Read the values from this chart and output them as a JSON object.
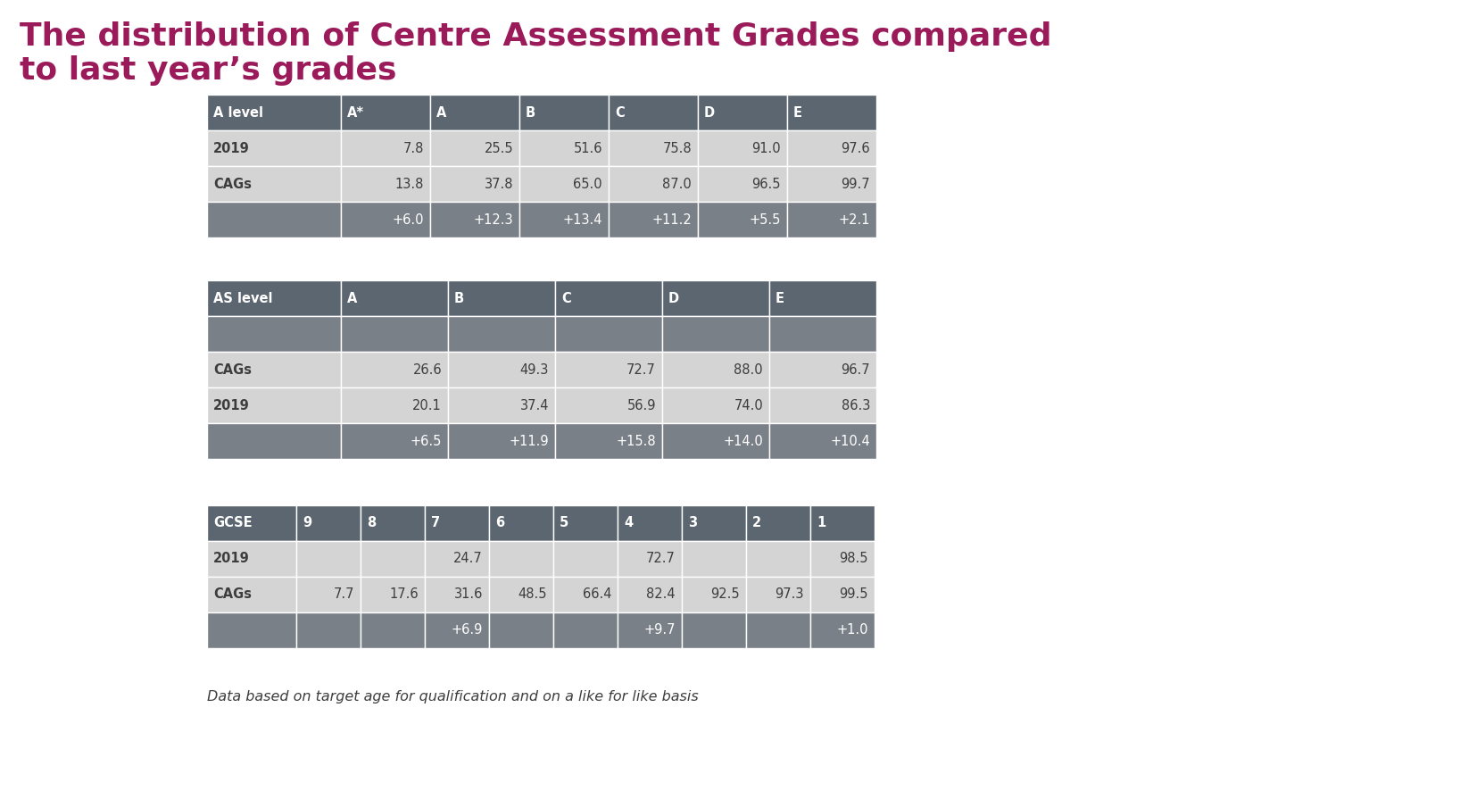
{
  "title_line1": "The distribution of Centre Assessment Grades compared",
  "title_line2": "to last year’s grades",
  "title_color": "#9B1B5A",
  "background_color": "#FFFFFF",
  "footnote": "Data based on target age for qualification and on a like for like basis",
  "a_level": {
    "header_label": "A level",
    "grade_cols": [
      "A*",
      "A",
      "B",
      "C",
      "D",
      "E"
    ],
    "rows": [
      {
        "label": "2019",
        "values": [
          "7.8",
          "25.5",
          "51.6",
          "75.8",
          "91.0",
          "97.6"
        ],
        "label_bold": true
      },
      {
        "label": "CAGs",
        "values": [
          "13.8",
          "37.8",
          "65.0",
          "87.0",
          "96.5",
          "99.7"
        ],
        "label_bold": true
      },
      {
        "label": "",
        "values": [
          "+6.0",
          "+12.3",
          "+13.4",
          "+11.2",
          "+5.5",
          "+2.1"
        ],
        "label_bold": false
      }
    ],
    "header_bg": "#5C6670",
    "row_bgs": [
      "#D4D4D4",
      "#D4D4D4",
      "#7A8088"
    ],
    "header_text": "#FFFFFF",
    "row_texts": [
      "#3D3D3D",
      "#3D3D3D",
      "#FFFFFF"
    ]
  },
  "as_level": {
    "header_label": "AS level",
    "grade_cols": [
      "A",
      "B",
      "C",
      "D",
      "E"
    ],
    "rows": [
      {
        "label": "",
        "values": [
          "",
          "",
          "",
          "",
          ""
        ],
        "label_bold": false
      },
      {
        "label": "CAGs",
        "values": [
          "26.6",
          "49.3",
          "72.7",
          "88.0",
          "96.7"
        ],
        "label_bold": true
      },
      {
        "label": "2019",
        "values": [
          "20.1",
          "37.4",
          "56.9",
          "74.0",
          "86.3"
        ],
        "label_bold": true
      },
      {
        "label": "",
        "values": [
          "+6.5",
          "+11.9",
          "+15.8",
          "+14.0",
          "+10.4"
        ],
        "label_bold": false
      }
    ],
    "header_bg": "#5C6670",
    "row_bgs": [
      "#7A8088",
      "#D4D4D4",
      "#D4D4D4",
      "#7A8088"
    ],
    "header_text": "#FFFFFF",
    "row_texts": [
      "#FFFFFF",
      "#3D3D3D",
      "#3D3D3D",
      "#FFFFFF"
    ]
  },
  "gcse": {
    "header_label": "GCSE",
    "grade_cols": [
      "9",
      "8",
      "7",
      "6",
      "5",
      "4",
      "3",
      "2",
      "1"
    ],
    "rows": [
      {
        "label": "2019",
        "values": [
          "",
          "",
          "24.7",
          "",
          "",
          "72.7",
          "",
          "",
          "98.5"
        ],
        "label_bold": true
      },
      {
        "label": "CAGs",
        "values": [
          "7.7",
          "17.6",
          "31.6",
          "48.5",
          "66.4",
          "82.4",
          "92.5",
          "97.3",
          "99.5"
        ],
        "label_bold": true
      },
      {
        "label": "",
        "values": [
          "",
          "",
          "+6.9",
          "",
          "",
          "+9.7",
          "",
          "",
          "+1.0"
        ],
        "label_bold": false
      }
    ],
    "header_bg": "#5C6670",
    "row_bgs": [
      "#D4D4D4",
      "#D4D4D4",
      "#7A8088"
    ],
    "header_text": "#FFFFFF",
    "row_texts": [
      "#3D3D3D",
      "#3D3D3D",
      "#FFFFFF"
    ]
  }
}
